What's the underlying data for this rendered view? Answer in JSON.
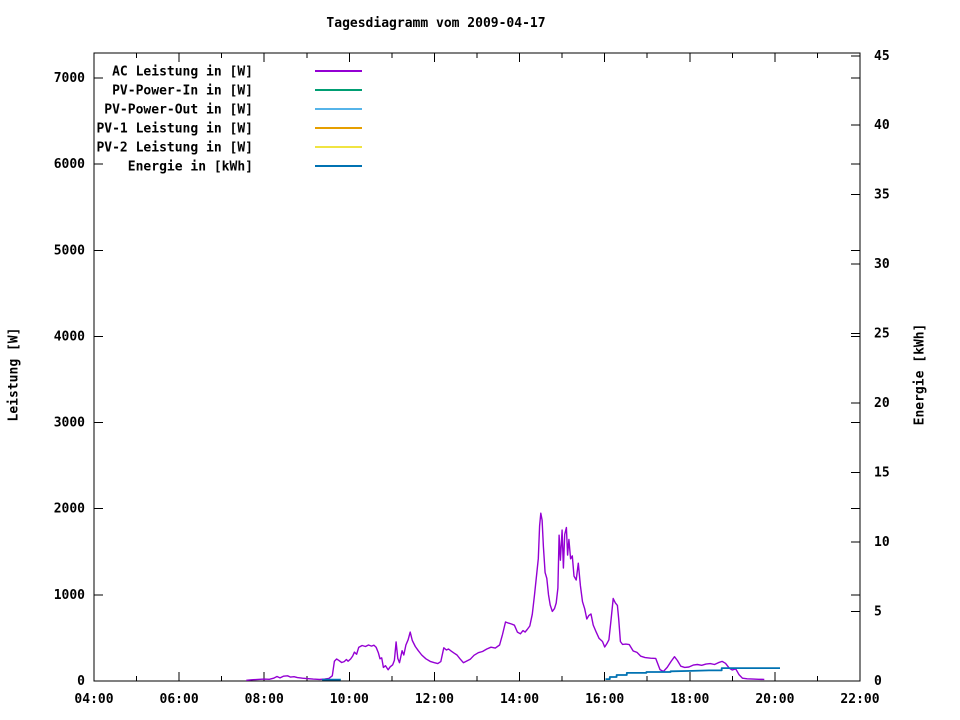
{
  "title": "Tagesdiagramm vom 2009-04-17",
  "axes": {
    "y1_label": "Leistung [W]",
    "y2_label": "Energie [kWh]",
    "x_tick_labels": [
      "04:00",
      "06:00",
      "08:00",
      "10:00",
      "12:00",
      "14:00",
      "16:00",
      "18:00",
      "20:00",
      "22:00"
    ],
    "x_major_hours": [
      4,
      6,
      8,
      10,
      12,
      14,
      16,
      18,
      20,
      22
    ],
    "x_minor_hours": [
      5,
      7,
      9,
      11,
      13,
      15,
      17,
      19,
      21
    ],
    "y1_ticks": [
      0,
      1000,
      2000,
      3000,
      4000,
      5000,
      6000,
      7000
    ],
    "y2_ticks": [
      0,
      5,
      10,
      15,
      20,
      25,
      30,
      35,
      40,
      45
    ],
    "x_range_hours": [
      4,
      22
    ],
    "y1_range": [
      0,
      7290
    ],
    "y2_range": [
      0,
      45.2
    ]
  },
  "legend": {
    "position": "top-left-inside",
    "entries": [
      {
        "label": "AC Leistung in [W]",
        "color": "#9400D3"
      },
      {
        "label": "PV-Power-In in [W]",
        "color": "#009E73"
      },
      {
        "label": "PV-Power-Out in [W]",
        "color": "#56B4E9"
      },
      {
        "label": "PV-1 Leistung in [W]",
        "color": "#E69F00"
      },
      {
        "label": "PV-2 Leistung in [W]",
        "color": "#F0E442"
      },
      {
        "label": "Energie in [kWh]",
        "color": "#0072B2"
      }
    ]
  },
  "chart_data": {
    "type": "line",
    "title": "Tagesdiagramm vom 2009-04-17",
    "xlabel": "",
    "ylabel": "Leistung [W]",
    "y2label": "Energie [kWh]",
    "x_unit": "hour-of-day",
    "grid": false,
    "series": [
      {
        "name": "AC Leistung in [W]",
        "axis": "y1",
        "color": "#9400D3",
        "points": [
          [
            7.58,
            8
          ],
          [
            7.7,
            14
          ],
          [
            7.85,
            18
          ],
          [
            8.0,
            22
          ],
          [
            8.12,
            20
          ],
          [
            8.22,
            32
          ],
          [
            8.3,
            52
          ],
          [
            8.37,
            36
          ],
          [
            8.45,
            56
          ],
          [
            8.55,
            60
          ],
          [
            8.62,
            45
          ],
          [
            8.7,
            50
          ],
          [
            8.78,
            40
          ],
          [
            8.9,
            32
          ],
          [
            9.0,
            28
          ],
          [
            9.15,
            22
          ],
          [
            9.3,
            18
          ],
          [
            9.42,
            22
          ],
          [
            9.52,
            30
          ],
          [
            9.6,
            60
          ],
          [
            9.65,
            230
          ],
          [
            9.7,
            255
          ],
          [
            9.75,
            240
          ],
          [
            9.82,
            215
          ],
          [
            9.88,
            225
          ],
          [
            9.93,
            250
          ],
          [
            9.97,
            230
          ],
          [
            10.03,
            255
          ],
          [
            10.08,
            290
          ],
          [
            10.12,
            335
          ],
          [
            10.17,
            310
          ],
          [
            10.22,
            390
          ],
          [
            10.3,
            412
          ],
          [
            10.38,
            400
          ],
          [
            10.45,
            418
          ],
          [
            10.52,
            405
          ],
          [
            10.58,
            415
          ],
          [
            10.63,
            392
          ],
          [
            10.68,
            330
          ],
          [
            10.72,
            258
          ],
          [
            10.76,
            268
          ],
          [
            10.8,
            158
          ],
          [
            10.85,
            178
          ],
          [
            10.91,
            130
          ],
          [
            10.96,
            165
          ],
          [
            11.02,
            188
          ],
          [
            11.06,
            242
          ],
          [
            11.1,
            453
          ],
          [
            11.14,
            262
          ],
          [
            11.18,
            212
          ],
          [
            11.24,
            352
          ],
          [
            11.28,
            302
          ],
          [
            11.33,
            418
          ],
          [
            11.38,
            478
          ],
          [
            11.43,
            568
          ],
          [
            11.48,
            470
          ],
          [
            11.55,
            400
          ],
          [
            11.62,
            352
          ],
          [
            11.7,
            302
          ],
          [
            11.8,
            258
          ],
          [
            11.9,
            228
          ],
          [
            12.0,
            212
          ],
          [
            12.08,
            202
          ],
          [
            12.15,
            225
          ],
          [
            12.22,
            385
          ],
          [
            12.28,
            360
          ],
          [
            12.33,
            372
          ],
          [
            12.4,
            345
          ],
          [
            12.47,
            322
          ],
          [
            12.53,
            302
          ],
          [
            12.6,
            258
          ],
          [
            12.68,
            212
          ],
          [
            12.76,
            232
          ],
          [
            12.84,
            252
          ],
          [
            12.93,
            298
          ],
          [
            13.03,
            328
          ],
          [
            13.13,
            342
          ],
          [
            13.23,
            372
          ],
          [
            13.33,
            392
          ],
          [
            13.43,
            382
          ],
          [
            13.53,
            418
          ],
          [
            13.6,
            540
          ],
          [
            13.67,
            685
          ],
          [
            13.74,
            672
          ],
          [
            13.81,
            662
          ],
          [
            13.88,
            648
          ],
          [
            13.95,
            568
          ],
          [
            14.02,
            548
          ],
          [
            14.08,
            585
          ],
          [
            14.13,
            568
          ],
          [
            14.18,
            598
          ],
          [
            14.24,
            638
          ],
          [
            14.3,
            775
          ],
          [
            14.35,
            1000
          ],
          [
            14.4,
            1230
          ],
          [
            14.44,
            1420
          ],
          [
            14.47,
            1800
          ],
          [
            14.5,
            1948
          ],
          [
            14.53,
            1868
          ],
          [
            14.56,
            1560
          ],
          [
            14.6,
            1258
          ],
          [
            14.64,
            1192
          ],
          [
            14.68,
            1002
          ],
          [
            14.72,
            882
          ],
          [
            14.77,
            808
          ],
          [
            14.82,
            840
          ],
          [
            14.86,
            905
          ],
          [
            14.9,
            1080
          ],
          [
            14.93,
            1692
          ],
          [
            14.96,
            1402
          ],
          [
            15.0,
            1752
          ],
          [
            15.03,
            1312
          ],
          [
            15.06,
            1702
          ],
          [
            15.1,
            1782
          ],
          [
            15.13,
            1462
          ],
          [
            15.16,
            1642
          ],
          [
            15.2,
            1418
          ],
          [
            15.24,
            1452
          ],
          [
            15.28,
            1218
          ],
          [
            15.33,
            1172
          ],
          [
            15.38,
            1368
          ],
          [
            15.43,
            1108
          ],
          [
            15.48,
            920
          ],
          [
            15.53,
            838
          ],
          [
            15.58,
            720
          ],
          [
            15.63,
            762
          ],
          [
            15.68,
            778
          ],
          [
            15.73,
            650
          ],
          [
            15.8,
            568
          ],
          [
            15.87,
            495
          ],
          [
            15.95,
            458
          ],
          [
            16.0,
            395
          ],
          [
            16.05,
            432
          ],
          [
            16.1,
            478
          ],
          [
            16.15,
            705
          ],
          [
            16.2,
            958
          ],
          [
            16.25,
            908
          ],
          [
            16.3,
            878
          ],
          [
            16.33,
            720
          ],
          [
            16.37,
            458
          ],
          [
            16.42,
            425
          ],
          [
            16.5,
            428
          ],
          [
            16.58,
            422
          ],
          [
            16.67,
            348
          ],
          [
            16.76,
            332
          ],
          [
            16.85,
            288
          ],
          [
            16.95,
            272
          ],
          [
            17.08,
            265
          ],
          [
            17.2,
            262
          ],
          [
            17.3,
            132
          ],
          [
            17.38,
            110
          ],
          [
            17.47,
            158
          ],
          [
            17.56,
            228
          ],
          [
            17.64,
            282
          ],
          [
            17.71,
            238
          ],
          [
            17.79,
            172
          ],
          [
            17.88,
            158
          ],
          [
            17.98,
            162
          ],
          [
            18.08,
            185
          ],
          [
            18.18,
            192
          ],
          [
            18.28,
            182
          ],
          [
            18.38,
            196
          ],
          [
            18.48,
            202
          ],
          [
            18.58,
            192
          ],
          [
            18.67,
            212
          ],
          [
            18.76,
            228
          ],
          [
            18.84,
            205
          ],
          [
            18.93,
            148
          ],
          [
            19.0,
            128
          ],
          [
            19.08,
            142
          ],
          [
            19.16,
            72
          ],
          [
            19.24,
            32
          ],
          [
            19.35,
            25
          ],
          [
            19.5,
            22
          ],
          [
            19.62,
            20
          ],
          [
            19.75,
            18
          ]
        ]
      },
      {
        "name": "PV-Power-In in [W]",
        "axis": "y1",
        "color": "#009E73",
        "points": []
      },
      {
        "name": "PV-Power-Out in [W]",
        "axis": "y1",
        "color": "#56B4E9",
        "points": []
      },
      {
        "name": "PV-1 Leistung in [W]",
        "axis": "y1",
        "color": "#E69F00",
        "points": []
      },
      {
        "name": "PV-2 Leistung in [W]",
        "axis": "y1",
        "color": "#F0E442",
        "points": []
      },
      {
        "name": "Energie in [kWh]",
        "axis": "y2",
        "color": "#0072B2",
        "segments": [
          [
            [
              9.36,
              0.1
            ],
            [
              9.8,
              0.1
            ]
          ],
          [
            [
              16.02,
              0.14
            ],
            [
              16.12,
              0.14
            ],
            [
              16.12,
              0.29
            ],
            [
              16.28,
              0.29
            ],
            [
              16.28,
              0.43
            ],
            [
              16.52,
              0.43
            ],
            [
              16.52,
              0.58
            ],
            [
              16.98,
              0.58
            ],
            [
              16.98,
              0.65
            ],
            [
              17.55,
              0.65
            ],
            [
              17.55,
              0.7
            ],
            [
              18.05,
              0.73
            ],
            [
              18.45,
              0.76
            ],
            [
              18.75,
              0.76
            ],
            [
              18.75,
              0.93
            ],
            [
              20.12,
              0.93
            ]
          ]
        ]
      }
    ]
  }
}
